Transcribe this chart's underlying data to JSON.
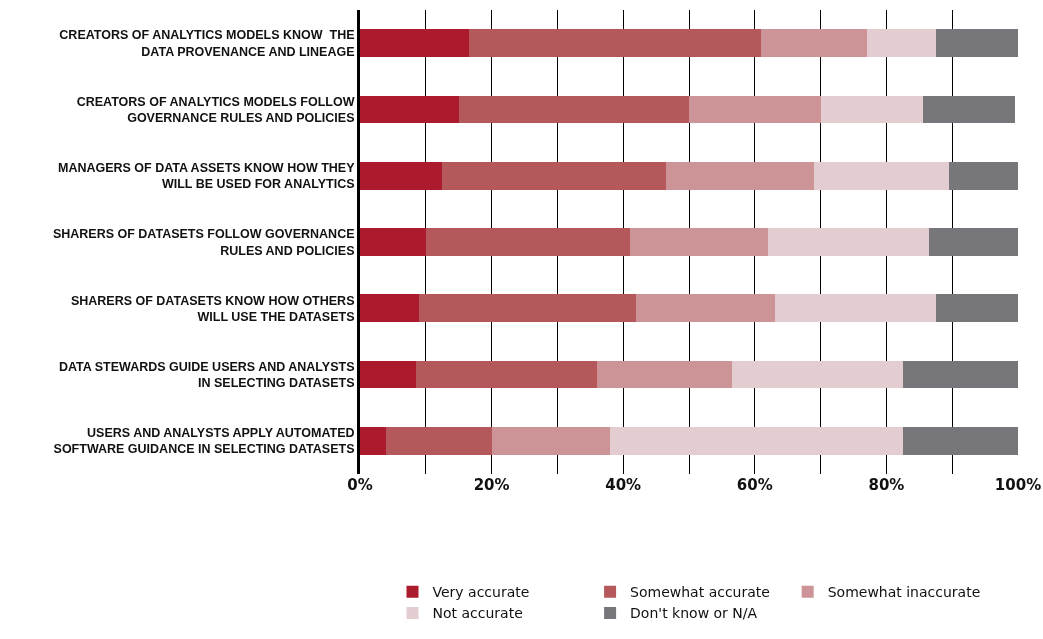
{
  "chart_data": {
    "type": "bar",
    "orientation": "horizontal",
    "stacked": true,
    "categories": [
      "CREATORS OF ANALYTICS MODELS KNOW  THE\nDATA PROVENANCE AND LINEAGE",
      "CREATORS OF ANALYTICS MODELS FOLLOW\nGOVERNANCE RULES AND POLICIES",
      "MANAGERS OF DATA ASSETS KNOW HOW THEY\nWILL BE USED FOR ANALYTICS",
      "SHARERS OF DATASETS FOLLOW GOVERNANCE\nRULES AND POLICIES",
      "SHARERS OF DATASETS KNOW HOW OTHERS\nWILL USE THE DATASETS",
      "DATA STEWARDS GUIDE USERS AND ANALYSTS\nIN SELECTING DATASETS",
      "USERS AND ANALYSTS APPLY AUTOMATED\nSOFTWARE GUIDANCE IN SELECTING DATASETS"
    ],
    "series": [
      {
        "name": "Very accurate",
        "color": "#ab1a2d",
        "values": [
          16.5,
          15,
          12.5,
          10,
          9,
          8.5,
          4
        ]
      },
      {
        "name": "Somewhat accurate",
        "color": "#b5585c",
        "values": [
          44.5,
          35,
          34,
          31,
          33,
          27.5,
          16
        ]
      },
      {
        "name": "Somewhat inaccurate",
        "color": "#cc9496",
        "values": [
          16,
          20,
          22.5,
          21,
          21,
          20.5,
          18
        ]
      },
      {
        "name": "Not accurate",
        "color": "#e3cdd0",
        "values": [
          10.5,
          15.5,
          20.5,
          24.5,
          24.5,
          26,
          44.5
        ]
      },
      {
        "name": "Don't know or N/A",
        "color": "#77777b",
        "values": [
          12.5,
          14,
          10.5,
          13.5,
          12.5,
          17.5,
          17.5
        ]
      }
    ],
    "xlim": [
      0,
      100
    ],
    "xticks": [
      {
        "value": 0,
        "label": "0%"
      },
      {
        "value": 10,
        "label": null
      },
      {
        "value": 20,
        "label": "20%"
      },
      {
        "value": 30,
        "label": null
      },
      {
        "value": 40,
        "label": "40%"
      },
      {
        "value": 50,
        "label": null
      },
      {
        "value": 60,
        "label": "60%"
      },
      {
        "value": 70,
        "label": null
      },
      {
        "value": 80,
        "label": "80%"
      },
      {
        "value": 90,
        "label": null
      },
      {
        "value": 100,
        "label": "100%"
      }
    ],
    "grid": "x",
    "legend": "bottom"
  }
}
